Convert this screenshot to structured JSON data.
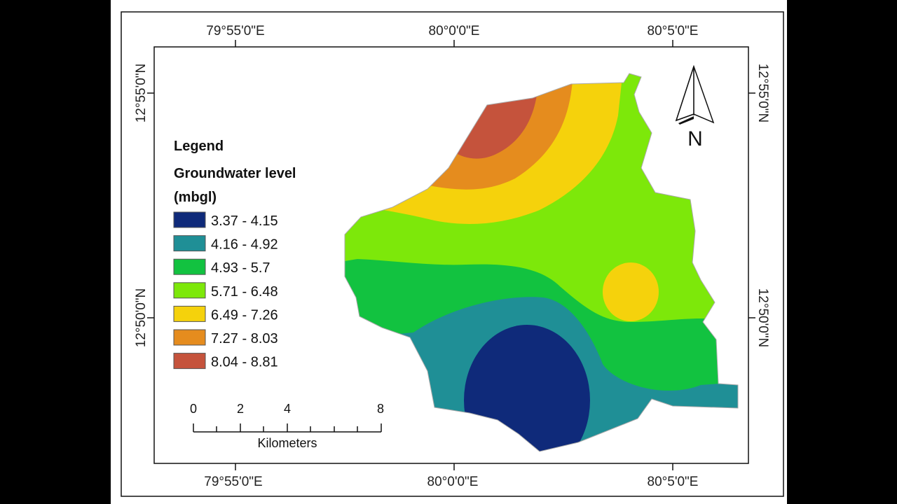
{
  "map": {
    "coords": {
      "top": [
        "79°55'0\"E",
        "80°0'0\"E",
        "80°5'0\"E"
      ],
      "bottom": [
        "79°55'0\"E",
        "80°0'0\"E",
        "80°5'0\"E"
      ],
      "left": [
        "12°55'0\"N",
        "12°50'0\"N"
      ],
      "right": [
        "12°55'0\"N",
        "12°50'0\"N"
      ]
    },
    "north_arrow_label": "N"
  },
  "legend": {
    "title": "Legend",
    "subtitle_line1": "Groundwater level",
    "subtitle_line2": "(mbgl)",
    "items": [
      {
        "label": "3.37 - 4.15",
        "color": "#0f2a7a"
      },
      {
        "label": "4.16 - 4.92",
        "color": "#1f8f96"
      },
      {
        "label": "4.93 - 5.7",
        "color": "#12c240"
      },
      {
        "label": "5.71 - 6.48",
        "color": "#7de80a"
      },
      {
        "label": "6.49 - 7.26",
        "color": "#f5d20c"
      },
      {
        "label": "7.27 - 8.03",
        "color": "#e58c1e"
      },
      {
        "label": "8.04 - 8.81",
        "color": "#c5533c"
      }
    ]
  },
  "scale_bar": {
    "ticks": [
      "0",
      "2",
      "4",
      "8"
    ],
    "unit": "Kilometers"
  }
}
